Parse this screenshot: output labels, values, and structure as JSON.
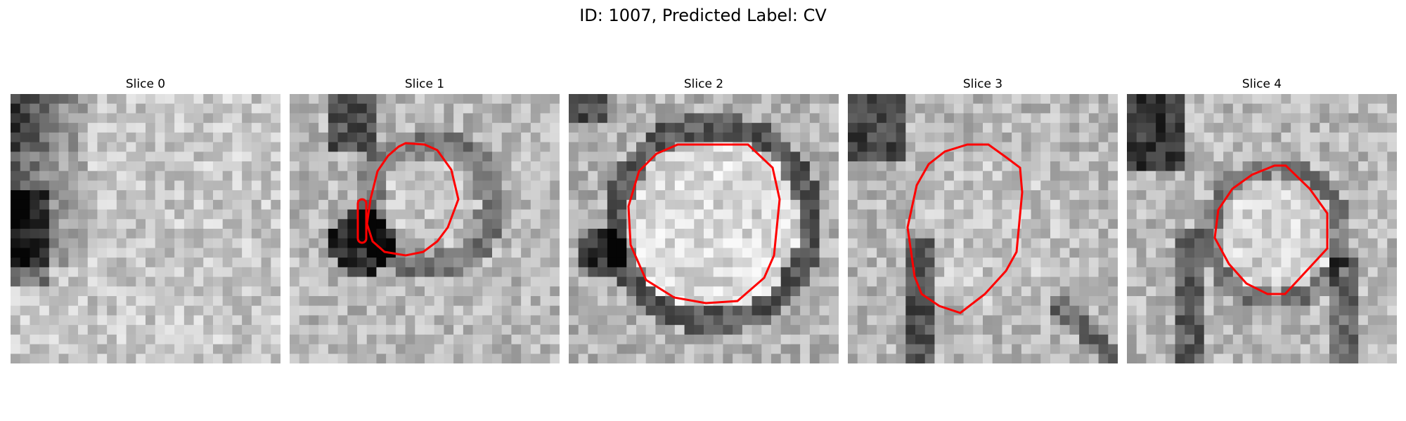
{
  "figure": {
    "title": "ID: 1007, Predicted Label: CV"
  },
  "panels": [
    {
      "title": "Slice 0",
      "contour": false
    },
    {
      "title": "Slice 1",
      "contour": true
    },
    {
      "title": "Slice 2",
      "contour": true
    },
    {
      "title": "Slice 3",
      "contour": true
    },
    {
      "title": "Slice 4",
      "contour": true
    }
  ],
  "colors": {
    "contour": "#ff0000",
    "background": "#ffffff"
  }
}
